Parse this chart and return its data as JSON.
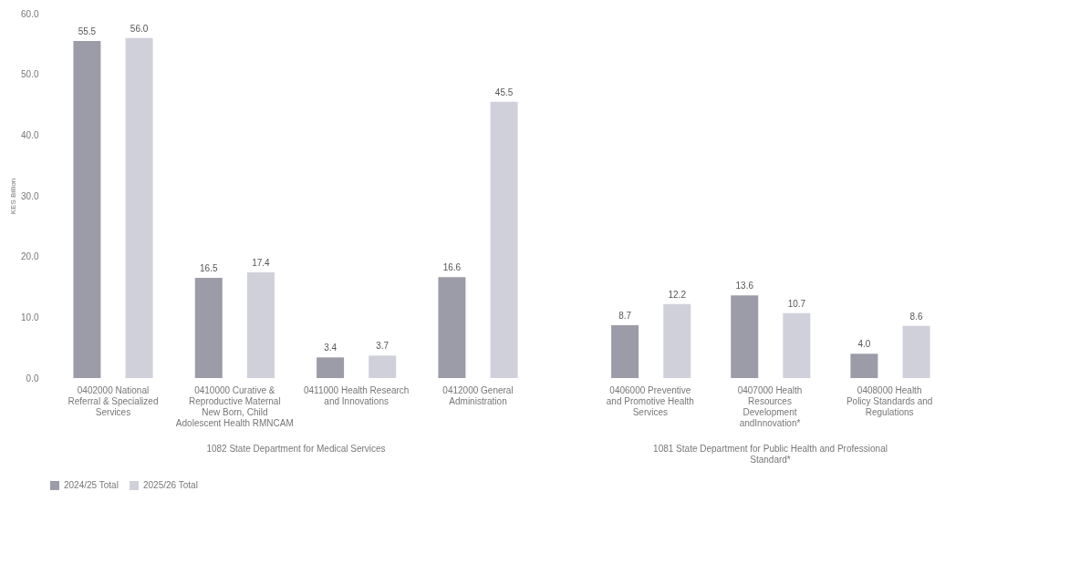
{
  "chart_data": [
    {
      "type": "bar",
      "categories": [
        "0402000 National Referral & Specialized Services",
        "0410000 Curative & Reproductive Maternal New Born, Child Adolescent Health RMNCAM",
        "0411000 Health Research and Innovations",
        "0412000 General Administration"
      ],
      "xlabel": "1082 State Department for Medical Services",
      "ylabel": "KES Billion",
      "series": [
        {
          "name": "2024/25 Total",
          "color": "#9c9ca8",
          "values": [
            55.5,
            16.5,
            3.4,
            16.6
          ],
          "value_labels": [
            "55.5",
            "16.5",
            "3.4",
            "16.6"
          ]
        },
        {
          "name": "2025/26 Total",
          "color": "#cfd0da",
          "values": [
            56.0,
            17.4,
            3.7,
            45.5
          ],
          "value_labels": [
            "56.0",
            "17.4",
            "3.7",
            "45.5"
          ]
        }
      ],
      "ylim": [
        0,
        60
      ],
      "yticks": [
        {
          "value": 0,
          "label": "0.0"
        },
        {
          "value": 10,
          "label": "10.0"
        },
        {
          "value": 20,
          "label": "20.0"
        },
        {
          "value": 30,
          "label": "30.0"
        },
        {
          "value": 40,
          "label": "40.0"
        },
        {
          "value": 50,
          "label": "50.0"
        },
        {
          "value": 60,
          "label": "60.0"
        }
      ],
      "grid": false,
      "legend": "bottom"
    },
    {
      "type": "bar",
      "categories": [
        "0406000 Preventive and Promotive Health Services",
        "0407000 Health Resources Development andInnovation*",
        "0408000 Health Policy Standards and Regulations"
      ],
      "xlabel": "1081 State Department for Public Health and Professional Standard*",
      "series": [
        {
          "name": "2024/25 Total",
          "color": "#9c9ca8",
          "values": [
            8.7,
            13.6,
            4.0
          ],
          "value_labels": [
            "8.7",
            "13.6",
            "4.0"
          ]
        },
        {
          "name": "2025/26 Total",
          "color": "#cfd0da",
          "values": [
            12.2,
            10.7,
            8.6
          ],
          "value_labels": [
            "12.2",
            "10.7",
            "8.6"
          ]
        }
      ],
      "ylim": [
        0,
        60
      ],
      "tick_labels": "x",
      "grid": false,
      "legend": false
    }
  ]
}
